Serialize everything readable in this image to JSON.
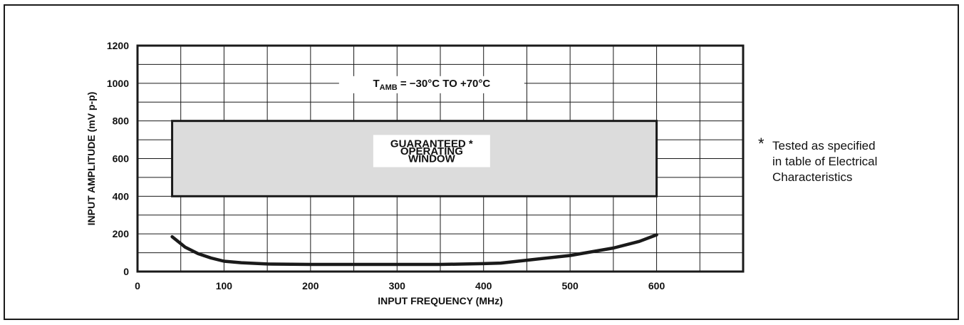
{
  "chart_data": {
    "type": "line",
    "xlabel": "INPUT FREQUENCY (MHz)",
    "ylabel": "INPUT AMPLITUDE (mV p-p)",
    "xlim": [
      0,
      700
    ],
    "ylim": [
      0,
      1200
    ],
    "x_ticks": [
      0,
      100,
      200,
      300,
      400,
      500,
      600
    ],
    "y_ticks": [
      0,
      200,
      400,
      600,
      800,
      1000,
      1200
    ],
    "grid": true,
    "annotation": {
      "main": "T",
      "subscript": "AMB",
      "rest": " = −30°C TO +70°C"
    },
    "window": {
      "x_range": [
        40,
        600
      ],
      "y_range": [
        400,
        800
      ],
      "label_lines": [
        "GUARANTEED *",
        "OPERATING",
        "WINDOW"
      ],
      "fill": "#dcdcdc"
    },
    "series": [
      {
        "x": [
          40,
          55,
          70,
          85,
          100,
          120,
          150,
          200,
          250,
          300,
          350,
          400,
          420,
          450,
          500,
          550,
          580,
          600
        ],
        "y": [
          185,
          130,
          95,
          72,
          55,
          47,
          40,
          38,
          38,
          38,
          38,
          42,
          45,
          60,
          85,
          125,
          160,
          195
        ]
      }
    ]
  },
  "footnote": {
    "star": "*",
    "lines": [
      "Tested as specified",
      "in table of Electrical",
      "Characteristics"
    ]
  }
}
